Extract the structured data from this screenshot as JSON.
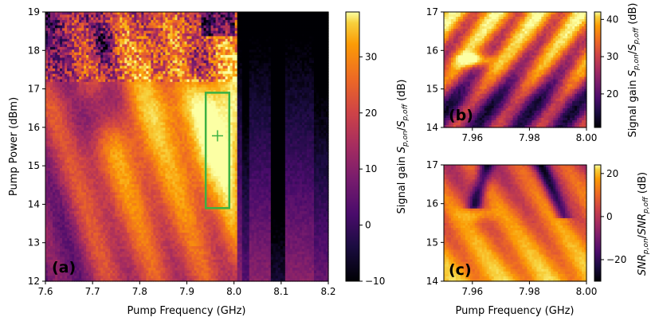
{
  "colors": {
    "colormap": "inferno",
    "highlight_box": "#3bb143"
  },
  "chart_data": [
    {
      "id": "a",
      "type": "heatmap",
      "panel_label": "(a)",
      "xlabel": "Pump Frequency (GHz)",
      "ylabel": "Pump Power (dBm)",
      "xlim": [
        7.6,
        8.2
      ],
      "ylim": [
        12,
        19
      ],
      "xticks": [
        "7.6",
        "7.7",
        "7.8",
        "7.9",
        "8.0",
        "8.1",
        "8.2"
      ],
      "yticks": [
        "12",
        "13",
        "14",
        "15",
        "16",
        "17",
        "18",
        "19"
      ],
      "colorbar": {
        "label": "Signal gain S_{p,on}/S_{p,off} (dB)",
        "range": [
          -10,
          38
        ],
        "ticks": [
          "−10",
          "0",
          "10",
          "20",
          "30"
        ]
      },
      "highlight_region": {
        "x": [
          7.94,
          7.99
        ],
        "y": [
          13.9,
          16.9
        ]
      },
      "marker": {
        "x": 7.965,
        "y": 15.78,
        "symbol": "+"
      }
    },
    {
      "id": "b",
      "type": "heatmap",
      "panel_label": "(b)",
      "xlim": [
        7.95,
        8.0
      ],
      "ylim": [
        14,
        17
      ],
      "yticks": [
        "14",
        "15",
        "16",
        "17"
      ],
      "xticks": [
        "7.96",
        "7.98",
        "8.00"
      ],
      "colorbar": {
        "label": "Signal gain S_{p,on}/S_{p,off} (dB)",
        "range": [
          11,
          42
        ],
        "ticks": [
          "20",
          "30",
          "40"
        ]
      },
      "hotspot": {
        "x": 7.961,
        "y": 15.75
      }
    },
    {
      "id": "c",
      "type": "heatmap",
      "panel_label": "(c)",
      "xlabel": "Pump Frequency (GHz)",
      "xlim": [
        7.95,
        8.0
      ],
      "ylim": [
        14,
        17
      ],
      "yticks": [
        "14",
        "15",
        "16",
        "17"
      ],
      "xticks": [
        "7.96",
        "7.98",
        "8.00"
      ],
      "colorbar": {
        "label": "SNR_{p,on}/SNR_{p,off} (dB)",
        "range": [
          -30,
          24
        ],
        "ticks": [
          "−20",
          "0",
          "20"
        ]
      },
      "hotspot": {
        "x": 7.963,
        "y": 15.72
      }
    }
  ]
}
